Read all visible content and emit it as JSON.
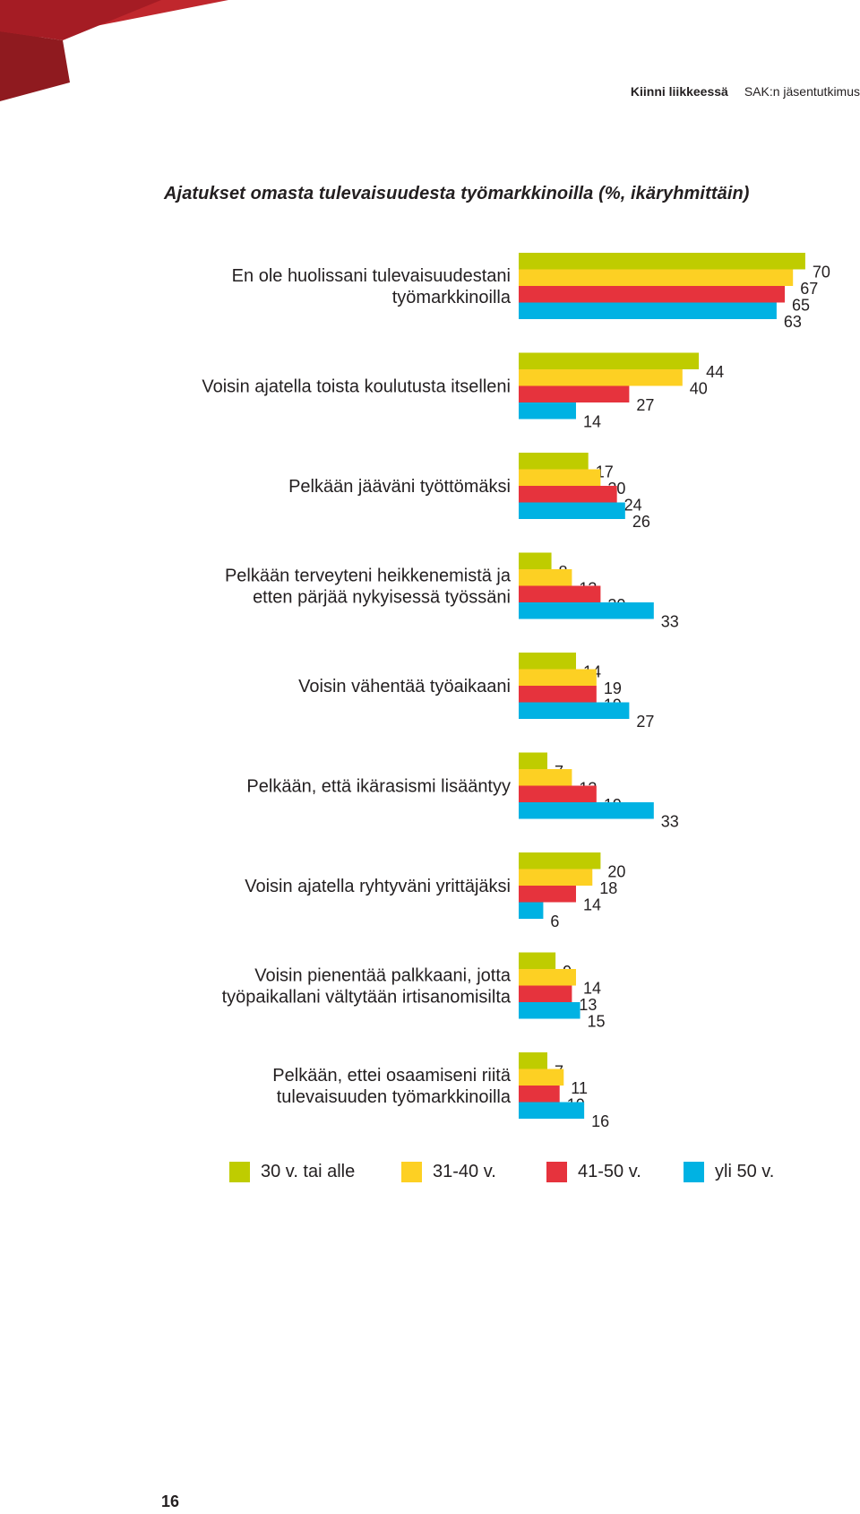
{
  "header": {
    "section": "Kiinni liikkeessä",
    "publication": "SAK:n jäsentutkimus"
  },
  "page_number": "16",
  "colors": {
    "series": [
      "#bfcc00",
      "#fdd023",
      "#e6333d",
      "#00b2e3"
    ],
    "corner": "#a51c24"
  },
  "chart_data": {
    "type": "bar",
    "orientation": "horizontal",
    "title": "Ajatukset omasta tulevaisuudesta työmarkkinoilla (%, ikäryhmittäin)",
    "categories": [
      [
        "En ole huolissani tulevaisuudestani",
        "työmarkkinoilla"
      ],
      [
        "Voisin ajatella toista koulutusta itselleni"
      ],
      [
        "Pelkään jääväni työttömäksi"
      ],
      [
        "Pelkään terveyteni heikkenemistä ja",
        "etten pärjää nykyisessä työssäni"
      ],
      [
        "Voisin vähentää työaikaani"
      ],
      [
        "Pelkään, että ikärasismi lisääntyy"
      ],
      [
        "Voisin ajatella ryhtyväni yrittäjäksi"
      ],
      [
        "Voisin pienentää palkkaani, jotta",
        "työpaikallani vältytään irtisanomisilta"
      ],
      [
        "Pelkään, ettei osaamiseni riitä",
        "tulevaisuuden työmarkkinoilla"
      ]
    ],
    "series": [
      {
        "name": "30 v. tai alle",
        "values": [
          70,
          44,
          17,
          8,
          14,
          7,
          20,
          9,
          7
        ]
      },
      {
        "name": "31-40 v.",
        "values": [
          67,
          40,
          20,
          13,
          19,
          13,
          18,
          14,
          11
        ]
      },
      {
        "name": "41-50 v.",
        "values": [
          65,
          27,
          24,
          20,
          19,
          19,
          14,
          13,
          10
        ]
      },
      {
        "name": "yli 50 v.",
        "values": [
          63,
          14,
          26,
          33,
          27,
          33,
          6,
          15,
          16
        ]
      }
    ],
    "legend_position": "bottom",
    "grid": false
  }
}
